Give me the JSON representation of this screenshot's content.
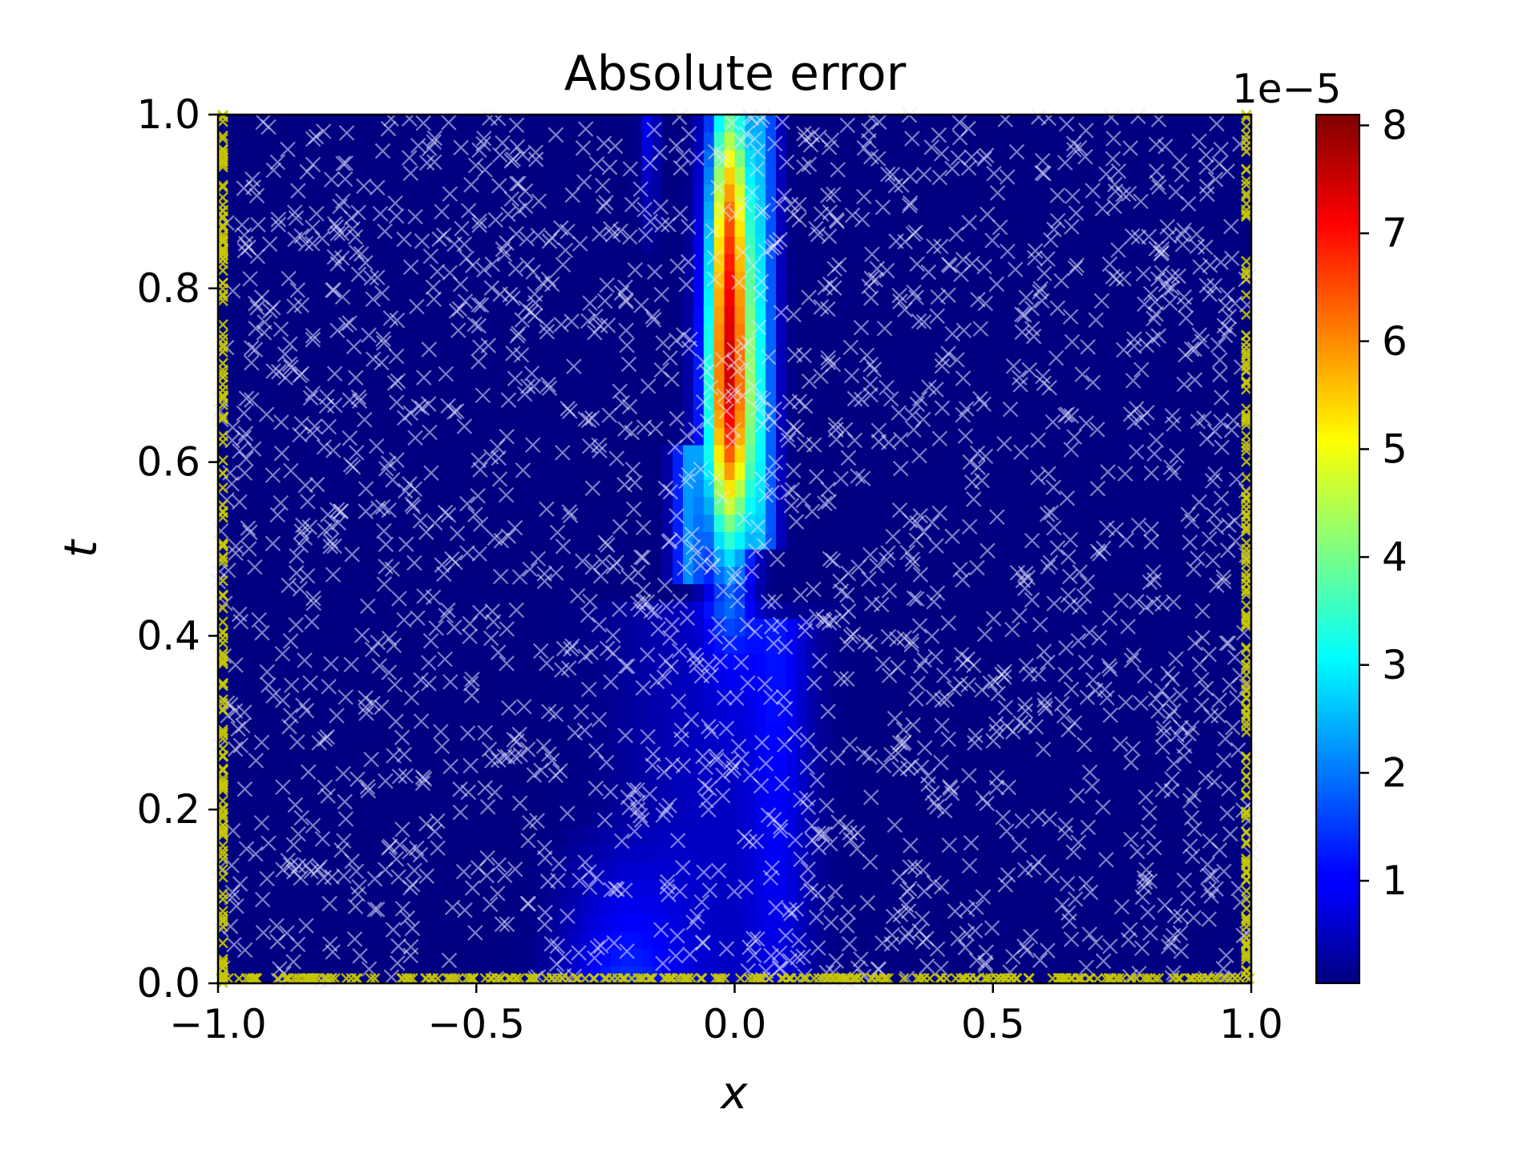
{
  "chart_data": {
    "type": "heatmap",
    "title": "Absolute error",
    "xlabel": "x",
    "ylabel": "t",
    "xlim": [
      -1.0,
      1.0
    ],
    "ylim": [
      0.0,
      1.0
    ],
    "x_ticks": [
      "−1.0",
      "−0.5",
      "0.0",
      "0.5",
      "1.0"
    ],
    "y_ticks": [
      "0.0",
      "0.2",
      "0.4",
      "0.6",
      "0.8",
      "1.0"
    ],
    "x_tick_values": [
      -1.0,
      -0.5,
      0.0,
      0.5,
      1.0
    ],
    "y_tick_values": [
      0.0,
      0.2,
      0.4,
      0.6,
      0.8,
      1.0
    ],
    "colormap": "jet",
    "colorbar": {
      "range": [
        0.05,
        8.1
      ],
      "scale_label": "1e−5",
      "ticks": [
        "1",
        "2",
        "3",
        "4",
        "5",
        "6",
        "7",
        "8"
      ],
      "tick_values": [
        1,
        2,
        3,
        4,
        5,
        6,
        7,
        8
      ]
    },
    "error_peak": {
      "x": -0.01,
      "t": 0.66,
      "value": 8.1
    },
    "overlay": [
      {
        "name": "collocation points",
        "marker": "x",
        "color": "#e6e6ff"
      },
      {
        "name": "boundary points",
        "marker": "x",
        "color": "#c8c800"
      }
    ]
  }
}
